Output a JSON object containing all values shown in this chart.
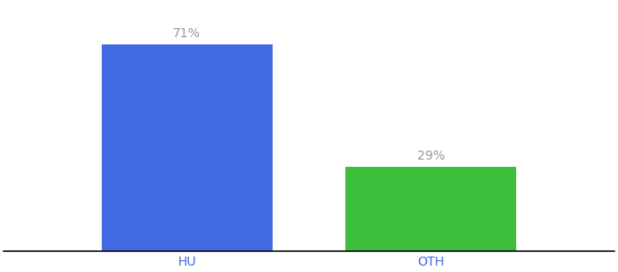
{
  "categories": [
    "HU",
    "OTH"
  ],
  "values": [
    71,
    29
  ],
  "bar_colors": [
    "#4169e1",
    "#3dbe3d"
  ],
  "label_texts": [
    "71%",
    "29%"
  ],
  "ylim": [
    0,
    85
  ],
  "background_color": "#ffffff",
  "label_color": "#999999",
  "tick_color": "#4169e1",
  "bar_width": 0.28,
  "figsize": [
    6.8,
    3.0
  ],
  "dpi": 100,
  "x_positions": [
    0.3,
    0.7
  ],
  "xlim": [
    0.0,
    1.0
  ]
}
